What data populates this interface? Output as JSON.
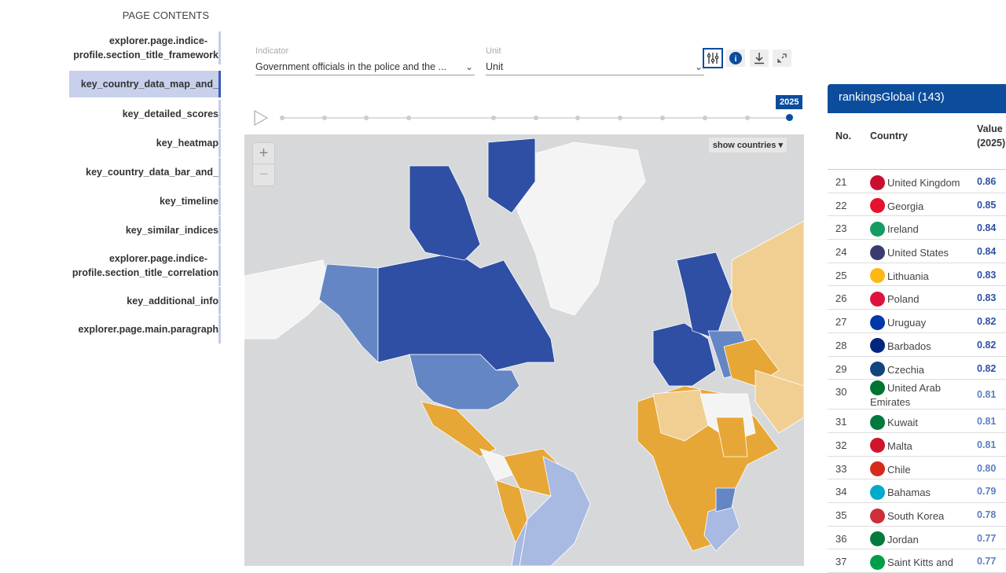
{
  "toc": {
    "title": "PAGE CONTENTS",
    "items": [
      {
        "label": [
          "explorer.page.indice-",
          "profile.section_title_framework"
        ],
        "active": false
      },
      {
        "label": [
          "key_country_data_map_and_"
        ],
        "active": true
      },
      {
        "label": [
          "key_detailed_scores"
        ],
        "active": false
      },
      {
        "label": [
          "key_heatmap"
        ],
        "active": false
      },
      {
        "label": [
          "key_country_data_bar_and_"
        ],
        "active": false
      },
      {
        "label": [
          "key_timeline"
        ],
        "active": false
      },
      {
        "label": [
          "key_similar_indices"
        ],
        "active": false
      },
      {
        "label": [
          "explorer.page.indice-",
          "profile.section_title_correlation"
        ],
        "active": false
      },
      {
        "label": [
          "key_additional_info"
        ],
        "active": false
      },
      {
        "label": [
          "explorer.page.main.paragraph"
        ],
        "active": false
      }
    ]
  },
  "controls": {
    "indicator_label": "Indicator",
    "indicator_value": "Government officials in the police and the ...",
    "unit_label": "Unit",
    "unit_value": "Unit",
    "icons": [
      "sliders-icon",
      "info-icon",
      "download-icon",
      "expand-icon"
    ]
  },
  "timeline": {
    "year": "2025",
    "play_icon": "play-icon",
    "ticks": 12
  },
  "map": {
    "zoom_in": "+",
    "zoom_out": "−",
    "show_countries": "show countries",
    "colors": {
      "high": "#2e4fa3",
      "mid": "#6586c4",
      "low": "#a8b9e2",
      "orange": "#e7a737",
      "lightorange": "#f1cf93",
      "nodata": "#f4f4f4",
      "water": "#d6d8da"
    }
  },
  "rankings": {
    "title": "rankingsGlobal (143)",
    "headers": {
      "no": "No.",
      "country": "Country",
      "value": "Value",
      "value_year": "(2025)"
    },
    "accent": "#0b4c9c",
    "rows": [
      {
        "no": "21",
        "country": "United Kingdom",
        "value": "0.86",
        "flag": "#c8102e"
      },
      {
        "no": "22",
        "country": "Georgia",
        "value": "0.85",
        "flag": "#e8112d"
      },
      {
        "no": "23",
        "country": "Ireland",
        "value": "0.84",
        "flag": "#169b62"
      },
      {
        "no": "24",
        "country": "United States",
        "value": "0.84",
        "flag": "#3c3b6e"
      },
      {
        "no": "25",
        "country": "Lithuania",
        "value": "0.83",
        "flag": "#fdb913"
      },
      {
        "no": "26",
        "country": "Poland",
        "value": "0.83",
        "flag": "#dc143c"
      },
      {
        "no": "27",
        "country": "Uruguay",
        "value": "0.82",
        "flag": "#0038a8"
      },
      {
        "no": "28",
        "country": "Barbados",
        "value": "0.82",
        "flag": "#00267f"
      },
      {
        "no": "29",
        "country": "Czechia",
        "value": "0.82",
        "flag": "#11457e"
      },
      {
        "no": "30",
        "country": "United Arab Emirates",
        "value": "0.81",
        "flag": "#00732f"
      },
      {
        "no": "31",
        "country": "Kuwait",
        "value": "0.81",
        "flag": "#007a3d"
      },
      {
        "no": "32",
        "country": "Malta",
        "value": "0.81",
        "flag": "#cf142b"
      },
      {
        "no": "33",
        "country": "Chile",
        "value": "0.80",
        "flag": "#d52b1e"
      },
      {
        "no": "34",
        "country": "Bahamas",
        "value": "0.79",
        "flag": "#00abc9"
      },
      {
        "no": "35",
        "country": "South Korea",
        "value": "0.78",
        "flag": "#cd2e3a"
      },
      {
        "no": "36",
        "country": "Jordan",
        "value": "0.77",
        "flag": "#007a3d"
      },
      {
        "no": "37",
        "country": "Saint Kitts and",
        "value": "0.77",
        "flag": "#009e49"
      }
    ]
  }
}
